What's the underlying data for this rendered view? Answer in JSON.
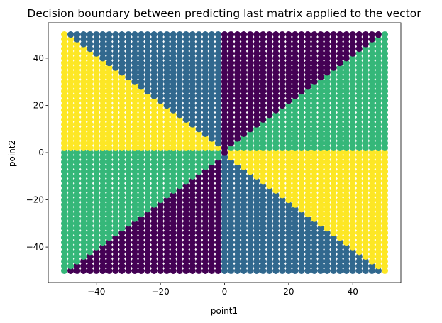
{
  "chart_data": {
    "type": "scatter",
    "title": "Decision boundary between predicting last matrix applied to the vector",
    "xlabel": "point1",
    "ylabel": "point2",
    "xlim": [
      -55,
      55
    ],
    "ylim": [
      -55,
      55
    ],
    "xticks": [
      -40,
      -20,
      0,
      20,
      40
    ],
    "yticks": [
      -40,
      -20,
      0,
      20,
      40
    ],
    "xtick_labels": [
      "−40",
      "−20",
      "0",
      "20",
      "40"
    ],
    "ytick_labels": [
      "−40",
      "−20",
      "0",
      "20",
      "40"
    ],
    "grid": false,
    "legend": "none",
    "grid_range": [
      -50,
      50
    ],
    "grid_step": 2,
    "classes": [
      {
        "class": 0,
        "color": "#440154"
      },
      {
        "class": 1,
        "color": "#31688e"
      },
      {
        "class": 2,
        "color": "#35b779"
      },
      {
        "class": 3,
        "color": "#fde725"
      }
    ],
    "regions": [
      {
        "region": "x>=0, y>x",
        "class": 0
      },
      {
        "region": "x>=0, 0<y<=x",
        "class": 2
      },
      {
        "region": "x>=0, -x<=y<0",
        "class": 3
      },
      {
        "region": "x>=0, y<-x",
        "class": 1
      },
      {
        "region": "x<0, y>-x",
        "class": 1
      },
      {
        "region": "x<0, 0<y<=-x",
        "class": 3
      },
      {
        "region": "x<0, x<=y<0",
        "class": 2
      },
      {
        "region": "x<0, y<x",
        "class": 0
      }
    ]
  }
}
